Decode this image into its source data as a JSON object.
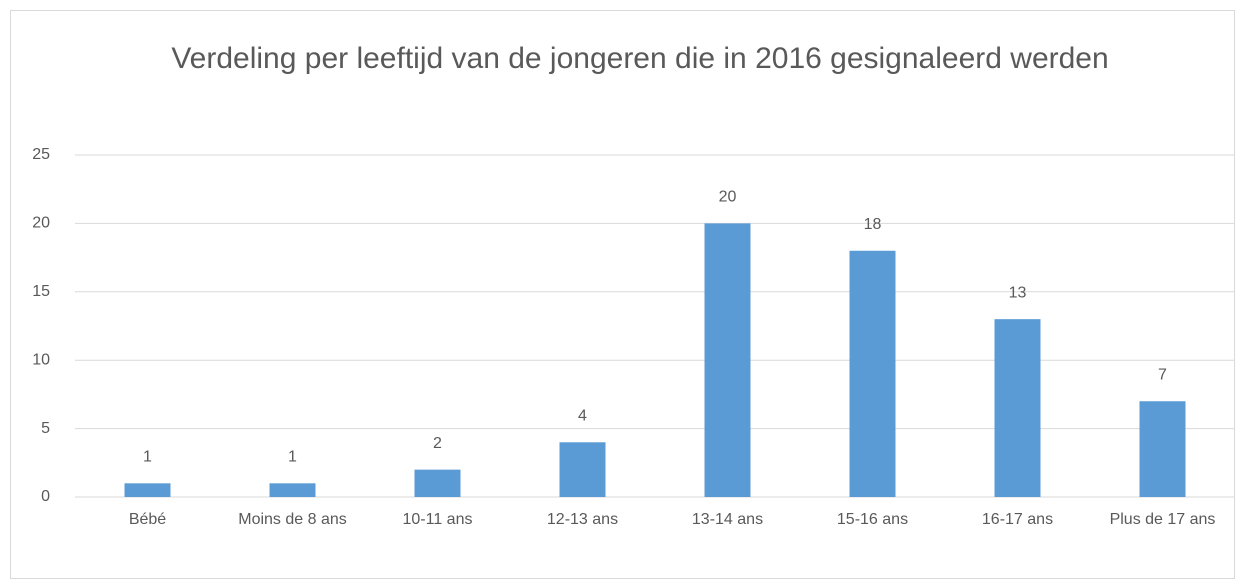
{
  "chart_data": {
    "type": "bar",
    "title": "Verdeling per leeftijd van de jongeren die in 2016 gesignaleerd werden",
    "categories": [
      "Bébé",
      "Moins de 8 ans",
      "10-11 ans",
      "12-13 ans",
      "13-14 ans",
      "15-16 ans",
      "16-17 ans",
      "Plus de 17 ans"
    ],
    "values": [
      1,
      1,
      2,
      4,
      20,
      18,
      13,
      7
    ],
    "color": "#5b9bd5",
    "ylim": [
      0,
      25
    ],
    "yticks": [
      0,
      5,
      10,
      15,
      20,
      25
    ],
    "grid": true
  }
}
